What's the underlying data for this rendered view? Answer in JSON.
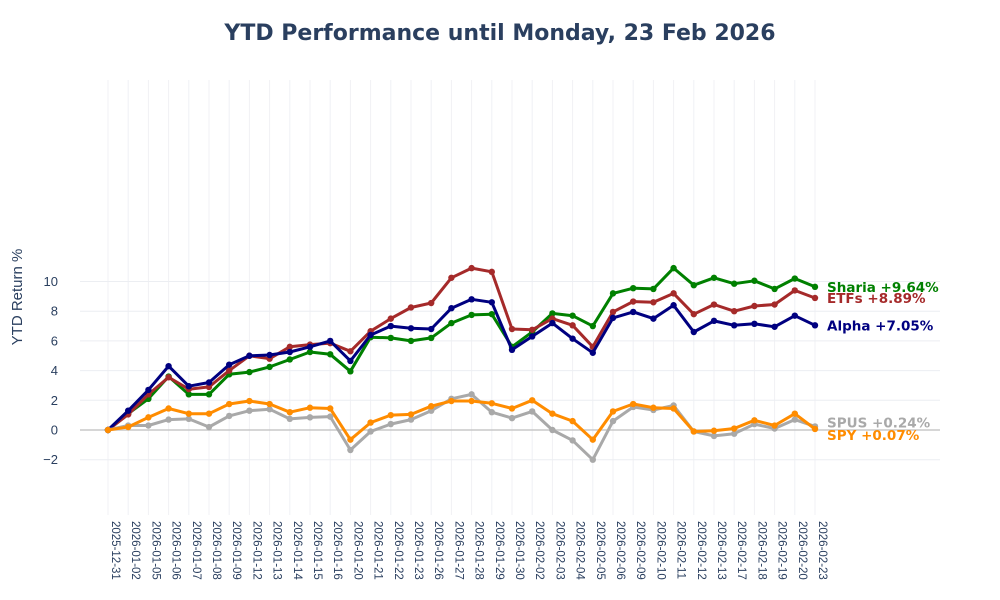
{
  "chart_data": {
    "type": "line",
    "title": "YTD Performance until Monday, 23 Feb 2026",
    "xlabel": "",
    "ylabel": "YTD Return %",
    "ylim": [
      -2.8,
      11.8
    ],
    "yticks": [
      -2,
      0,
      2,
      4,
      6,
      8,
      10
    ],
    "ytick_labels": [
      "−2",
      "0",
      "2",
      "4",
      "6",
      "8",
      "10"
    ],
    "grid": true,
    "legend": "end-of-line labels",
    "categories": [
      "2025-12-31",
      "2026-01-02",
      "2026-01-05",
      "2026-01-06",
      "2026-01-07",
      "2026-01-08",
      "2026-01-09",
      "2026-01-12",
      "2026-01-13",
      "2026-01-14",
      "2026-01-15",
      "2026-01-16",
      "2026-01-20",
      "2026-01-21",
      "2026-01-22",
      "2026-01-23",
      "2026-01-26",
      "2026-01-27",
      "2026-01-28",
      "2026-01-29",
      "2026-01-30",
      "2026-02-02",
      "2026-02-03",
      "2026-02-04",
      "2026-02-05",
      "2026-02-06",
      "2026-02-09",
      "2026-02-10",
      "2026-02-11",
      "2026-02-12",
      "2026-02-13",
      "2026-02-17",
      "2026-02-18",
      "2026-02-19",
      "2026-02-20",
      "2026-02-23"
    ],
    "series": [
      {
        "name": "Sharia",
        "label": "Sharia +9.64%",
        "color": "#008000",
        "values": [
          0,
          1.1,
          2.1,
          3.6,
          2.4,
          2.4,
          3.75,
          3.9,
          4.25,
          4.75,
          5.25,
          5.1,
          3.95,
          6.25,
          6.2,
          6.0,
          6.2,
          7.2,
          7.75,
          7.8,
          5.6,
          6.6,
          7.85,
          7.7,
          7.0,
          9.2,
          9.55,
          9.5,
          10.9,
          9.75,
          10.25,
          9.85,
          10.05,
          9.5,
          10.2,
          9.64
        ]
      },
      {
        "name": "ETFs",
        "label": "ETFs +8.89%",
        "color": "#a52a2a",
        "values": [
          0,
          1.05,
          2.4,
          3.55,
          2.75,
          2.9,
          4.0,
          5.0,
          4.8,
          5.6,
          5.75,
          5.85,
          5.3,
          6.65,
          7.5,
          8.25,
          8.55,
          10.25,
          10.9,
          10.65,
          6.8,
          6.75,
          7.5,
          7.05,
          5.6,
          7.95,
          8.65,
          8.6,
          9.2,
          7.8,
          8.45,
          8.0,
          8.35,
          8.45,
          9.4,
          8.89
        ]
      },
      {
        "name": "Alpha",
        "label": "Alpha +7.05%",
        "color": "#000080",
        "values": [
          0,
          1.3,
          2.7,
          4.3,
          2.95,
          3.2,
          4.4,
          5.0,
          5.05,
          5.25,
          5.6,
          6.0,
          4.65,
          6.4,
          7.0,
          6.85,
          6.8,
          8.2,
          8.8,
          8.6,
          5.4,
          6.3,
          7.2,
          6.15,
          5.2,
          7.55,
          7.95,
          7.5,
          8.4,
          6.6,
          7.35,
          7.05,
          7.15,
          6.95,
          7.7,
          7.05
        ]
      },
      {
        "name": "SPUS",
        "label": "SPUS +0.24%",
        "color": "#a9a9a9",
        "values": [
          0,
          0.3,
          0.3,
          0.7,
          0.75,
          0.2,
          0.95,
          1.3,
          1.4,
          0.75,
          0.85,
          0.9,
          -1.35,
          -0.1,
          0.4,
          0.7,
          1.3,
          2.1,
          2.4,
          1.2,
          0.8,
          1.25,
          0.0,
          -0.7,
          -2.0,
          0.6,
          1.55,
          1.35,
          1.65,
          -0.1,
          -0.4,
          -0.25,
          0.4,
          0.1,
          0.7,
          0.24
        ]
      },
      {
        "name": "SPY",
        "label": "SPY +0.07%",
        "color": "#ff8c00",
        "values": [
          0,
          0.2,
          0.85,
          1.45,
          1.1,
          1.1,
          1.75,
          1.95,
          1.75,
          1.2,
          1.5,
          1.45,
          -0.65,
          0.5,
          1.0,
          1.05,
          1.6,
          1.95,
          1.95,
          1.8,
          1.45,
          2.0,
          1.1,
          0.6,
          -0.65,
          1.25,
          1.75,
          1.5,
          1.45,
          -0.1,
          -0.05,
          0.1,
          0.65,
          0.3,
          1.1,
          0.07
        ]
      }
    ]
  }
}
